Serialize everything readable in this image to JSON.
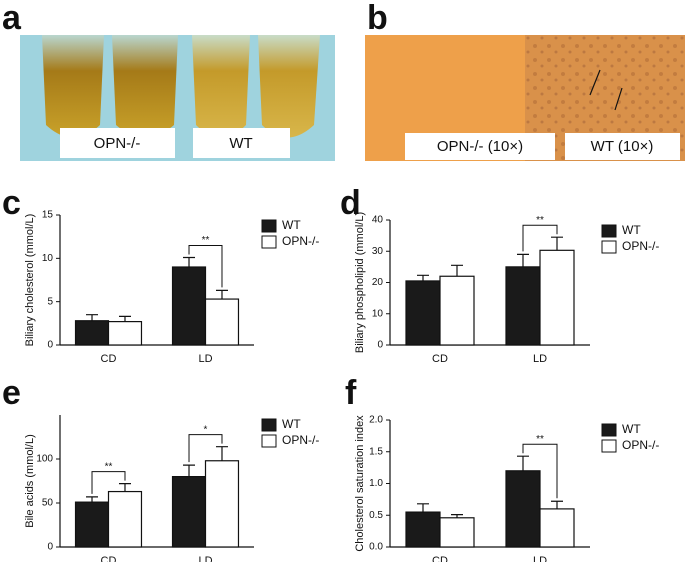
{
  "panels": [
    {
      "letter": "a",
      "labels": [
        "OPN-/-",
        "WT"
      ]
    },
    {
      "letter": "b",
      "labels": [
        "OPN-/- (10×)",
        "WT (10×)"
      ]
    }
  ],
  "chart_data": [
    {
      "letter": "c",
      "type": "bar",
      "ylabel": "Biliary cholesterol (mmol/L)",
      "categories": [
        "CD",
        "LD"
      ],
      "ylim": [
        0,
        15
      ],
      "yticks": [
        0,
        5,
        10,
        15
      ],
      "series": [
        {
          "name": "WT",
          "color": "#1a1a1a",
          "values": [
            2.8,
            9.0
          ],
          "errors": [
            0.7,
            1.1
          ]
        },
        {
          "name": "OPN-/-",
          "color": "#ffffff",
          "values": [
            2.7,
            5.3
          ],
          "errors": [
            0.6,
            1.0
          ]
        }
      ],
      "significance": [
        null,
        "**"
      ]
    },
    {
      "letter": "d",
      "type": "bar",
      "ylabel": "Biliary phospholipid (mmol/L)",
      "categories": [
        "CD",
        "LD"
      ],
      "ylim": [
        0,
        40
      ],
      "yticks": [
        0,
        10,
        20,
        30,
        40
      ],
      "series": [
        {
          "name": "WT",
          "color": "#1a1a1a",
          "values": [
            20.5,
            25
          ],
          "errors": [
            1.8,
            4
          ]
        },
        {
          "name": "OPN-/-",
          "color": "#ffffff",
          "values": [
            22,
            30.3
          ],
          "errors": [
            3.5,
            4.2
          ]
        }
      ],
      "significance": [
        null,
        "**"
      ]
    },
    {
      "letter": "e",
      "type": "bar",
      "ylabel": "Bile acids (mmol/L)",
      "categories": [
        "CD",
        "LD"
      ],
      "ylim": [
        0,
        150
      ],
      "yticks": [
        0,
        50,
        100
      ],
      "series": [
        {
          "name": "WT",
          "color": "#1a1a1a",
          "values": [
            51,
            80
          ],
          "errors": [
            6,
            13
          ]
        },
        {
          "name": "OPN-/-",
          "color": "#ffffff",
          "values": [
            63,
            98
          ],
          "errors": [
            9,
            16
          ]
        }
      ],
      "significance": [
        "**",
        "*"
      ]
    },
    {
      "letter": "f",
      "type": "bar",
      "ylabel": "Cholesterol saturation index",
      "categories": [
        "CD",
        "LD"
      ],
      "ylim": [
        0,
        2
      ],
      "yticks": [
        {
          "value": 0,
          "label": "0.0"
        },
        {
          "value": 0.5,
          "label": "0.5"
        },
        {
          "value": 1,
          "label": "1.0"
        },
        {
          "value": 1.5,
          "label": "1.5"
        },
        {
          "value": 2,
          "label": "2.0"
        }
      ],
      "series": [
        {
          "name": "WT",
          "color": "#1a1a1a",
          "values": [
            0.55,
            1.2
          ],
          "errors": [
            0.13,
            0.23
          ]
        },
        {
          "name": "OPN-/-",
          "color": "#ffffff",
          "values": [
            0.46,
            0.6
          ],
          "errors": [
            0.05,
            0.12
          ]
        }
      ],
      "significance": [
        null,
        "**"
      ]
    }
  ]
}
